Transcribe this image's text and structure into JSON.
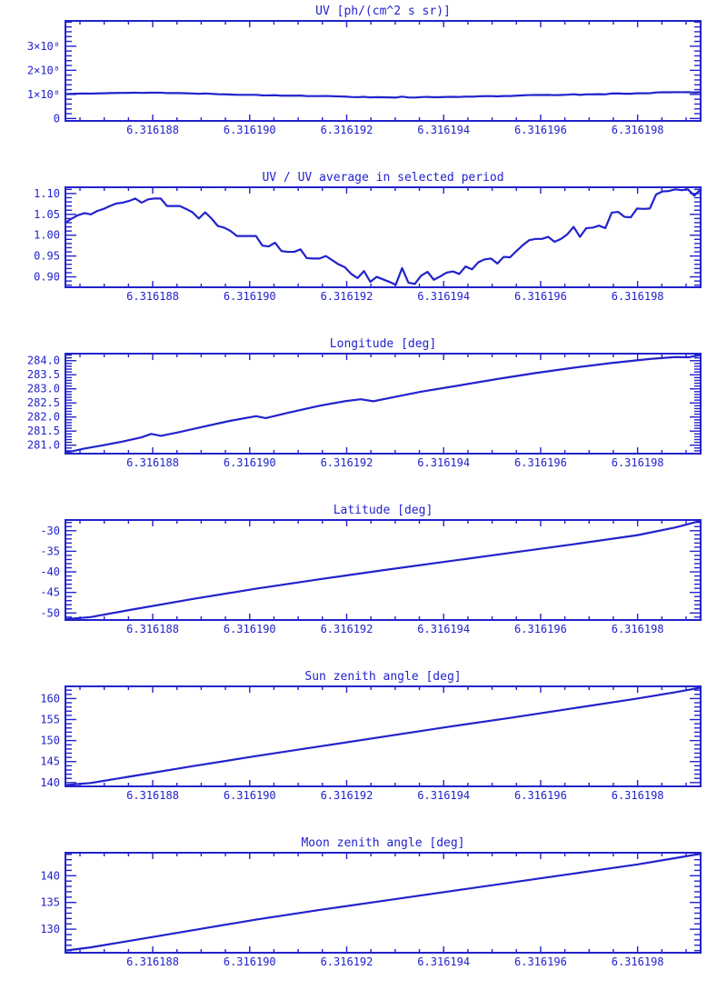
{
  "page": {
    "background": "#ffffff",
    "accent": "#2222cc",
    "window_kind": "idl-style stacked time-series plots"
  },
  "chart_data": [
    {
      "type": "line",
      "name": "uv",
      "title": "UV [ph/(cm^2 s sr)]",
      "units": "x10^8 ph/(cm^2 s sr)",
      "xlim": [
        6.3161862,
        6.3161993
      ],
      "ylim": [
        -0.1,
        4.05
      ],
      "x_minor_step": 5e-07,
      "y_minor_step": 0.2,
      "xticks": [
        {
          "value": 6.316188,
          "label": "6.316188"
        },
        {
          "value": 6.31619,
          "label": "6.316190"
        },
        {
          "value": 6.316192,
          "label": "6.316192"
        },
        {
          "value": 6.316194,
          "label": "6.316194"
        },
        {
          "value": 6.316196,
          "label": "6.316196"
        },
        {
          "value": 6.316198,
          "label": "6.316198"
        }
      ],
      "yticks": [
        {
          "value": 0,
          "label": "0"
        },
        {
          "value": 1,
          "label": "1×10⁸"
        },
        {
          "value": 2,
          "label": "2×10⁸"
        },
        {
          "value": 3,
          "label": "3×10⁸"
        }
      ],
      "series": {
        "x_start": 6.3161862,
        "x_end": 6.3161993,
        "values": [
          1.015,
          1.024,
          1.032,
          1.037,
          1.034,
          1.042,
          1.047,
          1.054,
          1.06,
          1.062,
          1.066,
          1.072,
          1.062,
          1.07,
          1.072,
          1.072,
          1.054,
          1.054,
          1.054,
          1.047,
          1.039,
          1.024,
          1.039,
          1.024,
          1.007,
          1.003,
          0.995,
          0.983,
          0.983,
          0.983,
          0.983,
          0.96,
          0.958,
          0.967,
          0.948,
          0.946,
          0.946,
          0.951,
          0.931,
          0.93,
          0.93,
          0.936,
          0.926,
          0.916,
          0.909,
          0.893,
          0.883,
          0.9,
          0.875,
          0.887,
          0.881,
          0.875,
          0.868,
          0.907,
          0.873,
          0.87,
          0.889,
          0.898,
          0.88,
          0.887,
          0.896,
          0.899,
          0.893,
          0.911,
          0.904,
          0.921,
          0.928,
          0.93,
          0.918,
          0.934,
          0.933,
          0.948,
          0.961,
          0.973,
          0.976,
          0.976,
          0.981,
          0.969,
          0.976,
          0.987,
          1.005,
          0.981,
          1.002,
          1.003,
          1.008,
          1.002,
          1.038,
          1.04,
          1.028,
          1.027,
          1.048,
          1.047,
          1.048,
          1.082,
          1.088,
          1.089,
          1.093,
          1.091,
          1.093,
          1.079,
          1.093
        ]
      }
    },
    {
      "type": "line",
      "name": "uv-ratio",
      "title": "UV / UV average in selected period",
      "units": "ratio",
      "xlim": [
        6.3161862,
        6.3161993
      ],
      "ylim": [
        0.875,
        1.115
      ],
      "x_minor_step": 5e-07,
      "y_minor_step": 0.01,
      "xticks": [
        {
          "value": 6.316188,
          "label": "6.316188"
        },
        {
          "value": 6.31619,
          "label": "6.316190"
        },
        {
          "value": 6.316192,
          "label": "6.316192"
        },
        {
          "value": 6.316194,
          "label": "6.316194"
        },
        {
          "value": 6.316196,
          "label": "6.316196"
        },
        {
          "value": 6.316198,
          "label": "6.316198"
        }
      ],
      "yticks": [
        {
          "value": 0.9,
          "label": "0.90"
        },
        {
          "value": 0.95,
          "label": "0.95"
        },
        {
          "value": 1.0,
          "label": "1.00"
        },
        {
          "value": 1.05,
          "label": "1.05"
        },
        {
          "value": 1.1,
          "label": "1.10"
        }
      ],
      "series": {
        "x_start": 6.3161862,
        "x_end": 6.3161993,
        "values": [
          1.03,
          1.04,
          1.048,
          1.053,
          1.05,
          1.058,
          1.063,
          1.07,
          1.076,
          1.078,
          1.082,
          1.088,
          1.078,
          1.086,
          1.088,
          1.088,
          1.07,
          1.07,
          1.07,
          1.063,
          1.055,
          1.04,
          1.055,
          1.04,
          1.022,
          1.018,
          1.01,
          0.998,
          0.998,
          0.998,
          0.998,
          0.975,
          0.973,
          0.982,
          0.962,
          0.96,
          0.96,
          0.966,
          0.945,
          0.944,
          0.944,
          0.95,
          0.94,
          0.93,
          0.923,
          0.907,
          0.897,
          0.914,
          0.888,
          0.9,
          0.894,
          0.888,
          0.881,
          0.921,
          0.886,
          0.883,
          0.903,
          0.912,
          0.893,
          0.901,
          0.91,
          0.913,
          0.907,
          0.925,
          0.918,
          0.935,
          0.942,
          0.944,
          0.932,
          0.948,
          0.947,
          0.962,
          0.976,
          0.988,
          0.991,
          0.991,
          0.996,
          0.984,
          0.991,
          1.002,
          1.02,
          0.996,
          1.017,
          1.018,
          1.023,
          1.017,
          1.054,
          1.056,
          1.044,
          1.043,
          1.064,
          1.063,
          1.064,
          1.098,
          1.105,
          1.106,
          1.11,
          1.108,
          1.11,
          1.095,
          1.11
        ]
      }
    },
    {
      "type": "line",
      "name": "longitude",
      "title": "Longitude [deg]",
      "units": "deg",
      "xlim": [
        6.3161862,
        6.3161993
      ],
      "ylim": [
        280.7,
        284.25
      ],
      "x_minor_step": 5e-07,
      "y_minor_step": 0.1,
      "xticks": [
        {
          "value": 6.316188,
          "label": "6.316188"
        },
        {
          "value": 6.31619,
          "label": "6.316190"
        },
        {
          "value": 6.316192,
          "label": "6.316192"
        },
        {
          "value": 6.316194,
          "label": "6.316194"
        },
        {
          "value": 6.316196,
          "label": "6.316196"
        },
        {
          "value": 6.316198,
          "label": "6.316198"
        }
      ],
      "yticks": [
        {
          "value": 281.0,
          "label": "281.0"
        },
        {
          "value": 281.5,
          "label": "281.5"
        },
        {
          "value": 282.0,
          "label": "282.0"
        },
        {
          "value": 282.5,
          "label": "282.5"
        },
        {
          "value": 283.0,
          "label": "283.0"
        },
        {
          "value": 283.5,
          "label": "283.5"
        },
        {
          "value": 284.0,
          "label": "284.0"
        }
      ],
      "series": {
        "points": [
          [
            6.3161862,
            280.73
          ],
          [
            6.31618659,
            280.88
          ],
          [
            6.31618699,
            281.0
          ],
          [
            6.31618738,
            281.13
          ],
          [
            6.31618777,
            281.28
          ],
          [
            6.31618797,
            281.4
          ],
          [
            6.31618817,
            281.33
          ],
          [
            6.31618856,
            281.47
          ],
          [
            6.31618908,
            281.67
          ],
          [
            6.31618961,
            281.87
          ],
          [
            6.31619013,
            282.03
          ],
          [
            6.31619033,
            281.96
          ],
          [
            6.31619079,
            282.15
          ],
          [
            6.31619144,
            282.4
          ],
          [
            6.31619196,
            282.56
          ],
          [
            6.31619229,
            282.63
          ],
          [
            6.31619255,
            282.56
          ],
          [
            6.31619301,
            282.72
          ],
          [
            6.31619354,
            282.9
          ],
          [
            6.31619432,
            283.12
          ],
          [
            6.31619511,
            283.35
          ],
          [
            6.31619589,
            283.56
          ],
          [
            6.31619668,
            283.75
          ],
          [
            6.31619747,
            283.92
          ],
          [
            6.31619825,
            284.06
          ],
          [
            6.31619878,
            284.13
          ],
          [
            6.31619904,
            284.12
          ],
          [
            6.3161993,
            284.2
          ]
        ]
      }
    },
    {
      "type": "line",
      "name": "latitude",
      "title": "Latitude [deg]",
      "units": "deg",
      "xlim": [
        6.3161862,
        6.3161993
      ],
      "ylim": [
        -51.7,
        -27.4
      ],
      "x_minor_step": 5e-07,
      "y_minor_step": 1,
      "xticks": [
        {
          "value": 6.316188,
          "label": "6.316188"
        },
        {
          "value": 6.31619,
          "label": "6.316190"
        },
        {
          "value": 6.316192,
          "label": "6.316192"
        },
        {
          "value": 6.316194,
          "label": "6.316194"
        },
        {
          "value": 6.316196,
          "label": "6.316196"
        },
        {
          "value": 6.316198,
          "label": "6.316198"
        }
      ],
      "yticks": [
        {
          "value": -50,
          "label": "-50"
        },
        {
          "value": -45,
          "label": "-45"
        },
        {
          "value": -40,
          "label": "-40"
        },
        {
          "value": -35,
          "label": "-35"
        },
        {
          "value": -30,
          "label": "-30"
        }
      ],
      "series": {
        "points": [
          [
            6.3161862,
            -51.5
          ],
          [
            6.31618672,
            -51.0
          ],
          [
            6.31618751,
            -49.3
          ],
          [
            6.31618882,
            -46.6
          ],
          [
            6.31619013,
            -44.1
          ],
          [
            6.31619144,
            -41.8
          ],
          [
            6.31619275,
            -39.6
          ],
          [
            6.31619406,
            -37.5
          ],
          [
            6.31619537,
            -35.4
          ],
          [
            6.31619668,
            -33.3
          ],
          [
            6.31619799,
            -31.1
          ],
          [
            6.31619878,
            -29.2
          ],
          [
            6.3161993,
            -27.6
          ]
        ]
      }
    },
    {
      "type": "line",
      "name": "sun-zenith-angle",
      "title": "Sun zenith angle [deg]",
      "units": "deg",
      "xlim": [
        6.3161862,
        6.3161993
      ],
      "ylim": [
        139.1,
        162.9
      ],
      "x_minor_step": 5e-07,
      "y_minor_step": 1,
      "xticks": [
        {
          "value": 6.316188,
          "label": "6.316188"
        },
        {
          "value": 6.31619,
          "label": "6.316190"
        },
        {
          "value": 6.316192,
          "label": "6.316192"
        },
        {
          "value": 6.316194,
          "label": "6.316194"
        },
        {
          "value": 6.316196,
          "label": "6.316196"
        },
        {
          "value": 6.316198,
          "label": "6.316198"
        }
      ],
      "yticks": [
        {
          "value": 140,
          "label": "140"
        },
        {
          "value": 145,
          "label": "145"
        },
        {
          "value": 150,
          "label": "150"
        },
        {
          "value": 155,
          "label": "155"
        },
        {
          "value": 160,
          "label": "160"
        }
      ],
      "series": {
        "points": [
          [
            6.3161862,
            139.4
          ],
          [
            6.31618672,
            139.9
          ],
          [
            6.31618751,
            141.4
          ],
          [
            6.31618882,
            143.9
          ],
          [
            6.31619013,
            146.3
          ],
          [
            6.31619144,
            148.6
          ],
          [
            6.31619275,
            150.9
          ],
          [
            6.31619406,
            153.2
          ],
          [
            6.31619537,
            155.4
          ],
          [
            6.31619668,
            157.7
          ],
          [
            6.31619799,
            160.0
          ],
          [
            6.31619878,
            161.5
          ],
          [
            6.3161993,
            162.6
          ]
        ]
      }
    },
    {
      "type": "line",
      "name": "moon-zenith-angle",
      "title": "Moon zenith angle [deg]",
      "units": "deg",
      "xlim": [
        6.3161862,
        6.3161993
      ],
      "ylim": [
        125.6,
        144.3
      ],
      "x_minor_step": 5e-07,
      "y_minor_step": 1,
      "xticks": [
        {
          "value": 6.316188,
          "label": "6.316188"
        },
        {
          "value": 6.31619,
          "label": "6.316190"
        },
        {
          "value": 6.316192,
          "label": "6.316192"
        },
        {
          "value": 6.316194,
          "label": "6.316194"
        },
        {
          "value": 6.316196,
          "label": "6.316196"
        },
        {
          "value": 6.316198,
          "label": "6.316198"
        }
      ],
      "yticks": [
        {
          "value": 130,
          "label": "130"
        },
        {
          "value": 135,
          "label": "135"
        },
        {
          "value": 140,
          "label": "140"
        }
      ],
      "series": {
        "points": [
          [
            6.3161862,
            126.0
          ],
          [
            6.31618672,
            126.6
          ],
          [
            6.31618751,
            127.8
          ],
          [
            6.31618882,
            129.8
          ],
          [
            6.31619013,
            131.8
          ],
          [
            6.31619144,
            133.6
          ],
          [
            6.31619275,
            135.3
          ],
          [
            6.31619406,
            137.0
          ],
          [
            6.31619537,
            138.7
          ],
          [
            6.31619668,
            140.4
          ],
          [
            6.31619799,
            142.1
          ],
          [
            6.31619878,
            143.3
          ],
          [
            6.3161993,
            144.1
          ]
        ]
      }
    }
  ]
}
